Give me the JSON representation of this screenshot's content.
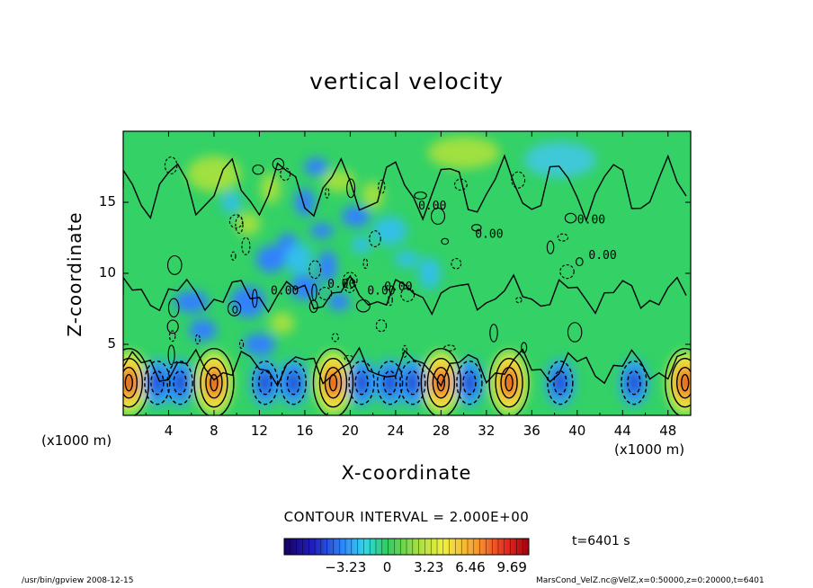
{
  "chart_data": {
    "type": "heatmap",
    "title": "vertical velocity",
    "xlabel": "X-coordinate",
    "ylabel": "Z-coordinate",
    "x_unit": "(x1000 m)",
    "x_ticks": [
      "4",
      "8",
      "12",
      "16",
      "20",
      "24",
      "28",
      "32",
      "36",
      "40",
      "44",
      "48"
    ],
    "y_ticks": [
      "5",
      "10",
      "15"
    ],
    "xlim": [
      0,
      50
    ],
    "ylim": [
      0,
      20
    ],
    "contour_interval_text": "CONTOUR INTERVAL = 2.000E+00",
    "colorbar": {
      "ticks": [
        "−3.23",
        "0",
        "3.23",
        "6.46",
        "9.69"
      ],
      "tick_values": [
        -3.23,
        0,
        3.23,
        6.46,
        9.69
      ],
      "range": [
        -8,
        11
      ]
    },
    "updraft_centers_x": [
      0.5,
      8,
      18.5,
      28,
      34,
      49.5
    ],
    "downdraft_centers_x": [
      3,
      5,
      12.5,
      15,
      21,
      23.5,
      25.5,
      30.5,
      38.5,
      45
    ],
    "labels": {
      "contour_label": "0.00"
    }
  },
  "time_label": "t=6401 s",
  "footer": {
    "left": "/usr/bin/gpview   2008-12-15",
    "right": "MarsCond_VelZ.nc@VelZ,x=0:50000,z=0:20000,t=6401"
  },
  "colors": {
    "background_green": "#33d166",
    "frame": "#000000"
  }
}
